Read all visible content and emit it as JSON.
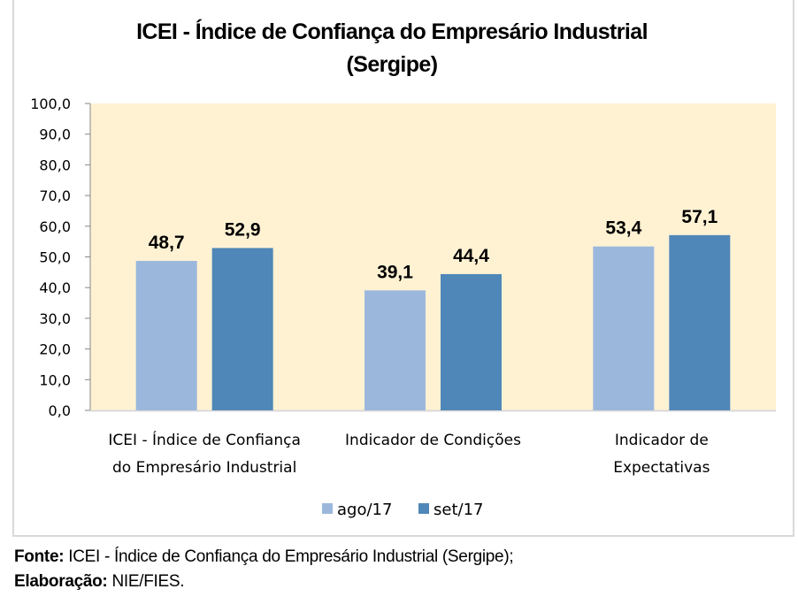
{
  "chart_data": {
    "type": "bar",
    "title": "ICEI - Índice de Confiança do Empresário Industrial",
    "subtitle": "(Sergipe)",
    "categories": [
      [
        "ICEI - Índice de Confiança",
        "do Empresário Industrial"
      ],
      [
        "Indicador de Condições"
      ],
      [
        "Indicador de",
        "Expectativas"
      ]
    ],
    "series": [
      {
        "name": "ago/17",
        "color": "#9bb8dc",
        "values": [
          48.7,
          39.1,
          53.4
        ],
        "labels": [
          "48,7",
          "39,1",
          "53,4"
        ]
      },
      {
        "name": "set/17",
        "color": "#4f87b8",
        "values": [
          52.9,
          44.4,
          57.1
        ],
        "labels": [
          "52,9",
          "44,4",
          "57,1"
        ]
      }
    ],
    "ylim": [
      0,
      100
    ],
    "yticks": [
      "0,0",
      "10,0",
      "20,0",
      "30,0",
      "40,0",
      "50,0",
      "60,0",
      "70,0",
      "80,0",
      "90,0",
      "100,0"
    ],
    "xlabel": "",
    "ylabel": "",
    "grid": false,
    "plot_background": "#fff2d3",
    "legend_position": "bottom"
  },
  "footer": {
    "source_label": "Fonte:",
    "source_text": " ICEI - Índice de Confiança do Empresário Industrial (Sergipe);",
    "credit_label": "Elaboração:",
    "credit_text": " NIE/FIES."
  }
}
